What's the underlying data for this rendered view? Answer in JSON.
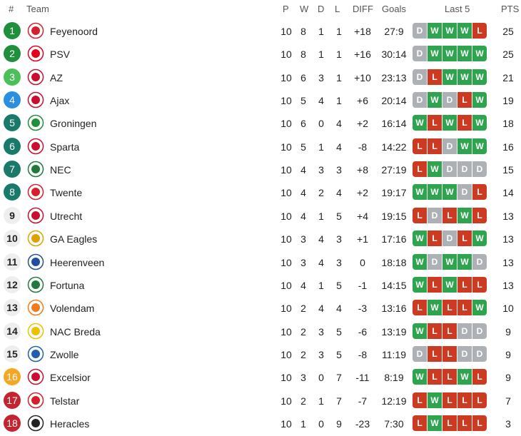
{
  "header": {
    "rank": "#",
    "team": "Team",
    "p": "P",
    "w": "W",
    "d": "D",
    "l": "L",
    "diff": "DIFF",
    "goals": "Goals",
    "last5": "Last 5",
    "pts": "PTS"
  },
  "colors": {
    "green_dark": "#1e8f3a",
    "green_light": "#4bbf5a",
    "blue": "#2a8fe0",
    "teal": "#1a7a6a",
    "gray": "#eeeeee",
    "orange": "#f5a623",
    "red": "#c4232f",
    "win": "#2ea44f",
    "draw": "#adb1b6",
    "loss": "#cc3a22"
  },
  "rows": [
    {
      "rank": "1",
      "team": "Feyenoord",
      "p": "10",
      "w": "8",
      "d": "1",
      "l": "1",
      "diff": "+18",
      "goals": "27:9",
      "form": [
        "D",
        "W",
        "W",
        "W",
        "L"
      ],
      "pts": "25",
      "rank_style": "green_dark",
      "logo_color": "#d4202b"
    },
    {
      "rank": "2",
      "team": "PSV",
      "p": "10",
      "w": "8",
      "d": "1",
      "l": "1",
      "diff": "+16",
      "goals": "30:14",
      "form": [
        "D",
        "W",
        "W",
        "W",
        "W"
      ],
      "pts": "25",
      "rank_style": "green_dark",
      "logo_color": "#e2001a"
    },
    {
      "rank": "3",
      "team": "AZ",
      "p": "10",
      "w": "6",
      "d": "3",
      "l": "1",
      "diff": "+10",
      "goals": "23:13",
      "form": [
        "D",
        "L",
        "W",
        "W",
        "W"
      ],
      "pts": "21",
      "rank_style": "green_light",
      "logo_color": "#c8102e"
    },
    {
      "rank": "4",
      "team": "Ajax",
      "p": "10",
      "w": "5",
      "d": "4",
      "l": "1",
      "diff": "+6",
      "goals": "20:14",
      "form": [
        "D",
        "W",
        "D",
        "L",
        "W"
      ],
      "pts": "19",
      "rank_style": "blue",
      "logo_color": "#c8102e"
    },
    {
      "rank": "5",
      "team": "Groningen",
      "p": "10",
      "w": "6",
      "d": "0",
      "l": "4",
      "diff": "+2",
      "goals": "16:14",
      "form": [
        "W",
        "L",
        "W",
        "L",
        "W"
      ],
      "pts": "18",
      "rank_style": "teal",
      "logo_color": "#1e8f3a"
    },
    {
      "rank": "6",
      "team": "Sparta",
      "p": "10",
      "w": "5",
      "d": "1",
      "l": "4",
      "diff": "-8",
      "goals": "14:22",
      "form": [
        "L",
        "L",
        "D",
        "W",
        "W"
      ],
      "pts": "16",
      "rank_style": "teal",
      "logo_color": "#c8102e"
    },
    {
      "rank": "7",
      "team": "NEC",
      "p": "10",
      "w": "4",
      "d": "3",
      "l": "3",
      "diff": "+8",
      "goals": "27:19",
      "form": [
        "L",
        "W",
        "D",
        "D",
        "D"
      ],
      "pts": "15",
      "rank_style": "teal",
      "logo_color": "#1f7a3a"
    },
    {
      "rank": "8",
      "team": "Twente",
      "p": "10",
      "w": "4",
      "d": "2",
      "l": "4",
      "diff": "+2",
      "goals": "19:17",
      "form": [
        "W",
        "W",
        "W",
        "D",
        "L"
      ],
      "pts": "14",
      "rank_style": "teal",
      "logo_color": "#d4202b"
    },
    {
      "rank": "9",
      "team": "Utrecht",
      "p": "10",
      "w": "4",
      "d": "1",
      "l": "5",
      "diff": "+4",
      "goals": "19:15",
      "form": [
        "L",
        "D",
        "L",
        "W",
        "L"
      ],
      "pts": "13",
      "rank_style": "gray",
      "logo_color": "#c8102e"
    },
    {
      "rank": "10",
      "team": "GA Eagles",
      "p": "10",
      "w": "3",
      "d": "4",
      "l": "3",
      "diff": "+1",
      "goals": "17:16",
      "form": [
        "W",
        "L",
        "D",
        "L",
        "W"
      ],
      "pts": "13",
      "rank_style": "gray",
      "logo_color": "#e0a000"
    },
    {
      "rank": "11",
      "team": "Heerenveen",
      "p": "10",
      "w": "3",
      "d": "4",
      "l": "3",
      "diff": "0",
      "goals": "18:18",
      "form": [
        "W",
        "D",
        "W",
        "W",
        "D"
      ],
      "pts": "13",
      "rank_style": "gray",
      "logo_color": "#1f4fa0"
    },
    {
      "rank": "12",
      "team": "Fortuna",
      "p": "10",
      "w": "4",
      "d": "1",
      "l": "5",
      "diff": "-1",
      "goals": "14:15",
      "form": [
        "W",
        "L",
        "W",
        "L",
        "L"
      ],
      "pts": "13",
      "rank_style": "gray",
      "logo_color": "#1f7a3a"
    },
    {
      "rank": "13",
      "team": "Volendam",
      "p": "10",
      "w": "2",
      "d": "4",
      "l": "4",
      "diff": "-3",
      "goals": "13:16",
      "form": [
        "L",
        "W",
        "L",
        "L",
        "W"
      ],
      "pts": "10",
      "rank_style": "gray",
      "logo_color": "#f07a1e"
    },
    {
      "rank": "14",
      "team": "NAC Breda",
      "p": "10",
      "w": "2",
      "d": "3",
      "l": "5",
      "diff": "-6",
      "goals": "13:19",
      "form": [
        "W",
        "L",
        "L",
        "D",
        "D"
      ],
      "pts": "9",
      "rank_style": "gray",
      "logo_color": "#f0c000"
    },
    {
      "rank": "15",
      "team": "Zwolle",
      "p": "10",
      "w": "2",
      "d": "3",
      "l": "5",
      "diff": "-8",
      "goals": "11:19",
      "form": [
        "D",
        "L",
        "L",
        "D",
        "D"
      ],
      "pts": "9",
      "rank_style": "gray",
      "logo_color": "#1f5fb0"
    },
    {
      "rank": "16",
      "team": "Excelsior",
      "p": "10",
      "w": "3",
      "d": "0",
      "l": "7",
      "diff": "-11",
      "goals": "8:19",
      "form": [
        "W",
        "L",
        "L",
        "W",
        "L"
      ],
      "pts": "9",
      "rank_style": "orange",
      "logo_color": "#c8102e"
    },
    {
      "rank": "17",
      "team": "Telstar",
      "p": "10",
      "w": "2",
      "d": "1",
      "l": "7",
      "diff": "-7",
      "goals": "12:19",
      "form": [
        "L",
        "W",
        "L",
        "L",
        "L"
      ],
      "pts": "7",
      "rank_style": "red",
      "logo_color": "#d4202b"
    },
    {
      "rank": "18",
      "team": "Heracles",
      "p": "10",
      "w": "1",
      "d": "0",
      "l": "9",
      "diff": "-23",
      "goals": "7:30",
      "form": [
        "L",
        "W",
        "L",
        "L",
        "L"
      ],
      "pts": "3",
      "rank_style": "red",
      "logo_color": "#222222"
    }
  ]
}
